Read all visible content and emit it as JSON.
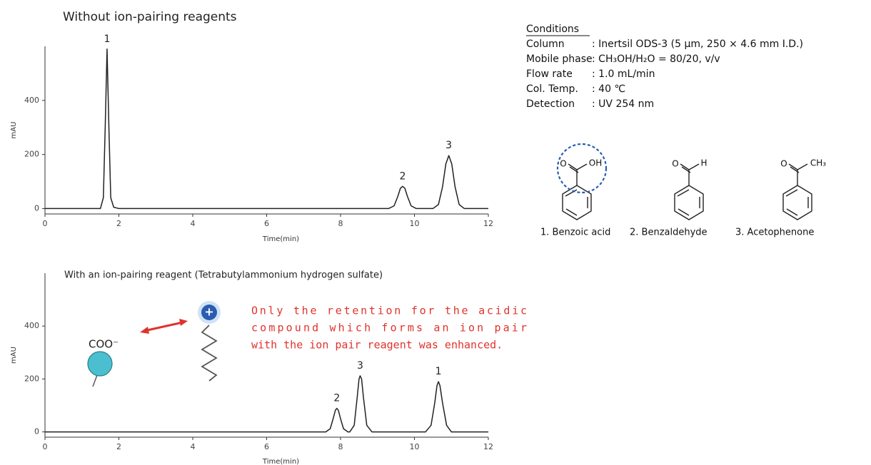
{
  "chart_data": [
    {
      "type": "line",
      "title": "Without ion-pairing reagents",
      "x_label": "Time(min)",
      "y_label": "mAU",
      "xlim": [
        0,
        12
      ],
      "xticks": [
        0,
        2,
        4,
        6,
        8,
        10,
        12
      ],
      "ylim": [
        -20,
        600
      ],
      "yticks": [
        0,
        200,
        400
      ],
      "color": "#222222",
      "x": [
        0,
        1.5,
        1.58,
        1.63,
        1.68,
        1.73,
        1.78,
        1.86,
        2.0,
        9.3,
        9.45,
        9.55,
        9.62,
        9.68,
        9.74,
        9.81,
        9.91,
        10.05,
        10.5,
        10.65,
        10.76,
        10.85,
        10.93,
        11.01,
        11.1,
        11.21,
        11.35,
        12
      ],
      "values": [
        0,
        0,
        40,
        300,
        590,
        300,
        40,
        5,
        0,
        0,
        10,
        45,
        75,
        82,
        75,
        45,
        10,
        0,
        0,
        15,
        80,
        165,
        196,
        165,
        80,
        15,
        0,
        0
      ],
      "peaks": [
        {
          "label": "1",
          "time": 1.68
        },
        {
          "label": "2",
          "time": 9.68
        },
        {
          "label": "3",
          "time": 10.93
        }
      ]
    },
    {
      "type": "line",
      "title": "With an ion-pairing reagent (Tetrabutylammonium hydrogen sulfate)",
      "x_label": "Time(min)",
      "y_label": "mAU",
      "xlim": [
        0,
        12
      ],
      "xticks": [
        0,
        2,
        4,
        6,
        8,
        10,
        12
      ],
      "ylim": [
        -20,
        600
      ],
      "yticks": [
        0,
        200,
        400
      ],
      "color": "#222222",
      "x": [
        0,
        7.6,
        7.72,
        7.8,
        7.86,
        7.9,
        7.94,
        8.0,
        8.08,
        8.2,
        8.25,
        8.37,
        8.45,
        8.5,
        8.53,
        8.57,
        8.62,
        8.71,
        8.85,
        10.3,
        10.45,
        10.55,
        10.61,
        10.65,
        10.69,
        10.76,
        10.87,
        11.0,
        12
      ],
      "values": [
        0,
        0,
        12,
        50,
        82,
        89,
        82,
        50,
        12,
        0,
        0,
        25,
        130,
        200,
        212,
        200,
        130,
        25,
        0,
        0,
        25,
        110,
        175,
        190,
        175,
        110,
        25,
        0,
        0
      ],
      "peaks": [
        {
          "label": "2",
          "time": 7.9
        },
        {
          "label": "3",
          "time": 8.53
        },
        {
          "label": "1",
          "time": 10.65
        }
      ],
      "annotation_lines": [
        "Only the retention for the acidic",
        "compound which forms an ion pair",
        "with the ion pair reagent was enhanced."
      ],
      "anion_label": "COO⁻",
      "cation_label": "+"
    }
  ],
  "conditions": {
    "header": "Conditions",
    "rows": [
      [
        "Column",
        ": Inertsil ODS-3 (5 µm, 250 × 4.6 mm I.D.)"
      ],
      [
        "Mobile phase",
        ": CH₃OH/H₂O = 80/20, v/v"
      ],
      [
        "Flow rate",
        ": 1.0 mL/min"
      ],
      [
        "Col. Temp.",
        ": 40 ℃"
      ],
      [
        "Detection",
        ": UV 254 nm"
      ]
    ]
  },
  "structures": [
    {
      "name": "1. Benzoic acid",
      "atoms": [
        "O",
        "OH"
      ]
    },
    {
      "name": "2. Benzaldehyde",
      "atoms": [
        "O",
        "H"
      ]
    },
    {
      "name": "3. Acetophenone",
      "atoms": [
        "O",
        "CH₃"
      ]
    }
  ]
}
